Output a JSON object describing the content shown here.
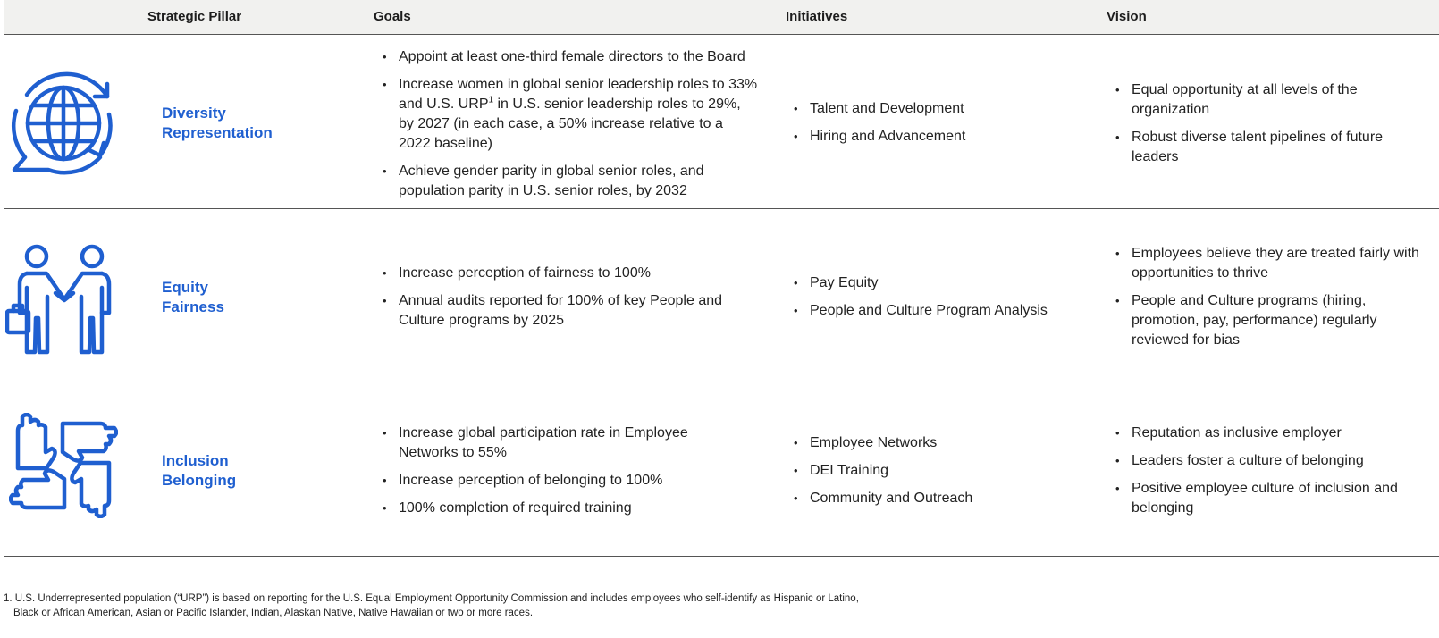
{
  "header": {
    "col_pillar": "Strategic Pillar",
    "col_goals": "Goals",
    "col_initiatives": "Initiatives",
    "col_vision": "Vision"
  },
  "rows": [
    {
      "icon": "globe-icon",
      "pillar_line1": "Diversity",
      "pillar_line2": "Representation",
      "goals": [
        "Appoint at least one-third female directors to the Board",
        "Increase women in global senior leadership roles to 33% and U.S. URP¹ in U.S. senior leadership roles to 29%, by 2027 (in each case, a 50% increase relative to a 2022 baseline)",
        "Achieve gender parity in global senior roles, and population parity in U.S. senior roles, by 2032"
      ],
      "initiatives": [
        "Talent and Development",
        "Hiring and Advancement"
      ],
      "vision": [
        "Equal opportunity at all levels of the organization",
        "Robust diverse talent pipelines of future leaders"
      ]
    },
    {
      "icon": "handshake-icon",
      "pillar_line1": "Equity",
      "pillar_line2": "Fairness",
      "goals": [
        "Increase perception of fairness to 100%",
        "Annual audits reported for 100% of key People and Culture programs by 2025"
      ],
      "initiatives": [
        "Pay Equity",
        "People and Culture Program Analysis"
      ],
      "vision": [
        "Employees believe they are treated fairly with opportunities to thrive",
        "People and Culture programs (hiring, promotion, pay, performance) regularly reviewed for bias"
      ]
    },
    {
      "icon": "joined-hands-icon",
      "pillar_line1": "Inclusion",
      "pillar_line2": "Belonging",
      "goals": [
        "Increase global participation rate in Employee Networks to 55%",
        "Increase perception of belonging to 100%",
        "100% completion of required training"
      ],
      "initiatives": [
        "Employee Networks",
        "DEI Training",
        "Community and Outreach"
      ],
      "vision": [
        "Reputation as inclusive employer",
        "Leaders foster a culture of belonging",
        "Positive employee culture of inclusion and belonging"
      ]
    }
  ],
  "footnote": {
    "line1": "1. U.S. Underrepresented population (“URP”) is based on reporting for the U.S. Equal Employment Opportunity Commission and includes employees who self-identify as Hispanic or Latino,",
    "line2": "Black or African American, Asian or Pacific Islander, Indian, Alaskan Native, Native Hawaiian or two or more races."
  },
  "colors": {
    "accent": "#1f5fd0",
    "rule": "#555555",
    "header_bg": "#f1f1ef"
  }
}
